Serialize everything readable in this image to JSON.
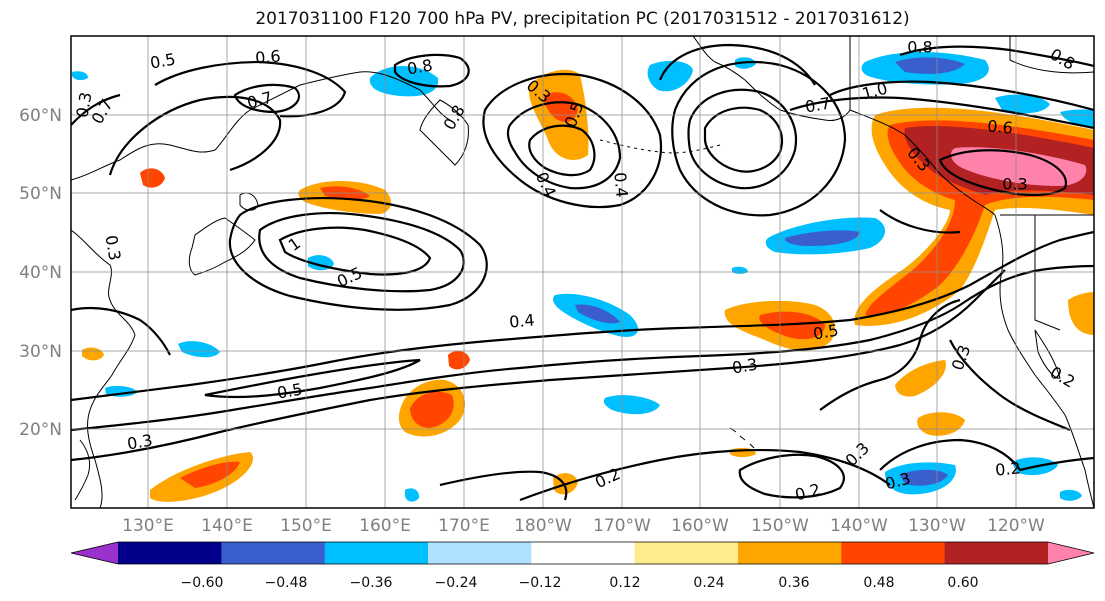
{
  "title": "2017031100 F120 700 hPa PV, precipitation PC (2017031512 - 2017031612)",
  "lat_labels": [
    "60°N",
    "50°N",
    "40°N",
    "30°N",
    "20°N"
  ],
  "lon_labels": [
    "130°E",
    "140°E",
    "150°E",
    "160°E",
    "170°E",
    "180°W",
    "170°W",
    "160°W",
    "150°W",
    "140°W",
    "130°W",
    "120°W"
  ],
  "contour_labels": [
    "0.5",
    "0.6",
    "0.7",
    "0.7",
    "0.8",
    "0.8",
    "0.3",
    "0.4",
    "0.5",
    "0.3",
    "0.4",
    "0.7",
    "1.0",
    "0.8",
    "0.6",
    "0.3",
    "0.3",
    "0.8",
    "1",
    "0.5",
    "0.4",
    "0.5",
    "0.5",
    "0.3",
    "0.3",
    "0.3",
    "0.2",
    "0.3",
    "0.2",
    "0.3",
    "0.2",
    "0.2",
    "0.3"
  ],
  "colorbar": {
    "ticks": [
      "−0.60",
      "−0.48",
      "−0.36",
      "−0.24",
      "−0.12",
      "0.12",
      "0.24",
      "0.36",
      "0.48",
      "0.60"
    ],
    "colors": [
      "#9932cc",
      "#00008b",
      "#3a5fcd",
      "#00bfff",
      "#b0e2ff",
      "#ffffff",
      "#ffec8b",
      "#ffa500",
      "#ff4500",
      "#b22222",
      "#ff82ab"
    ]
  }
}
